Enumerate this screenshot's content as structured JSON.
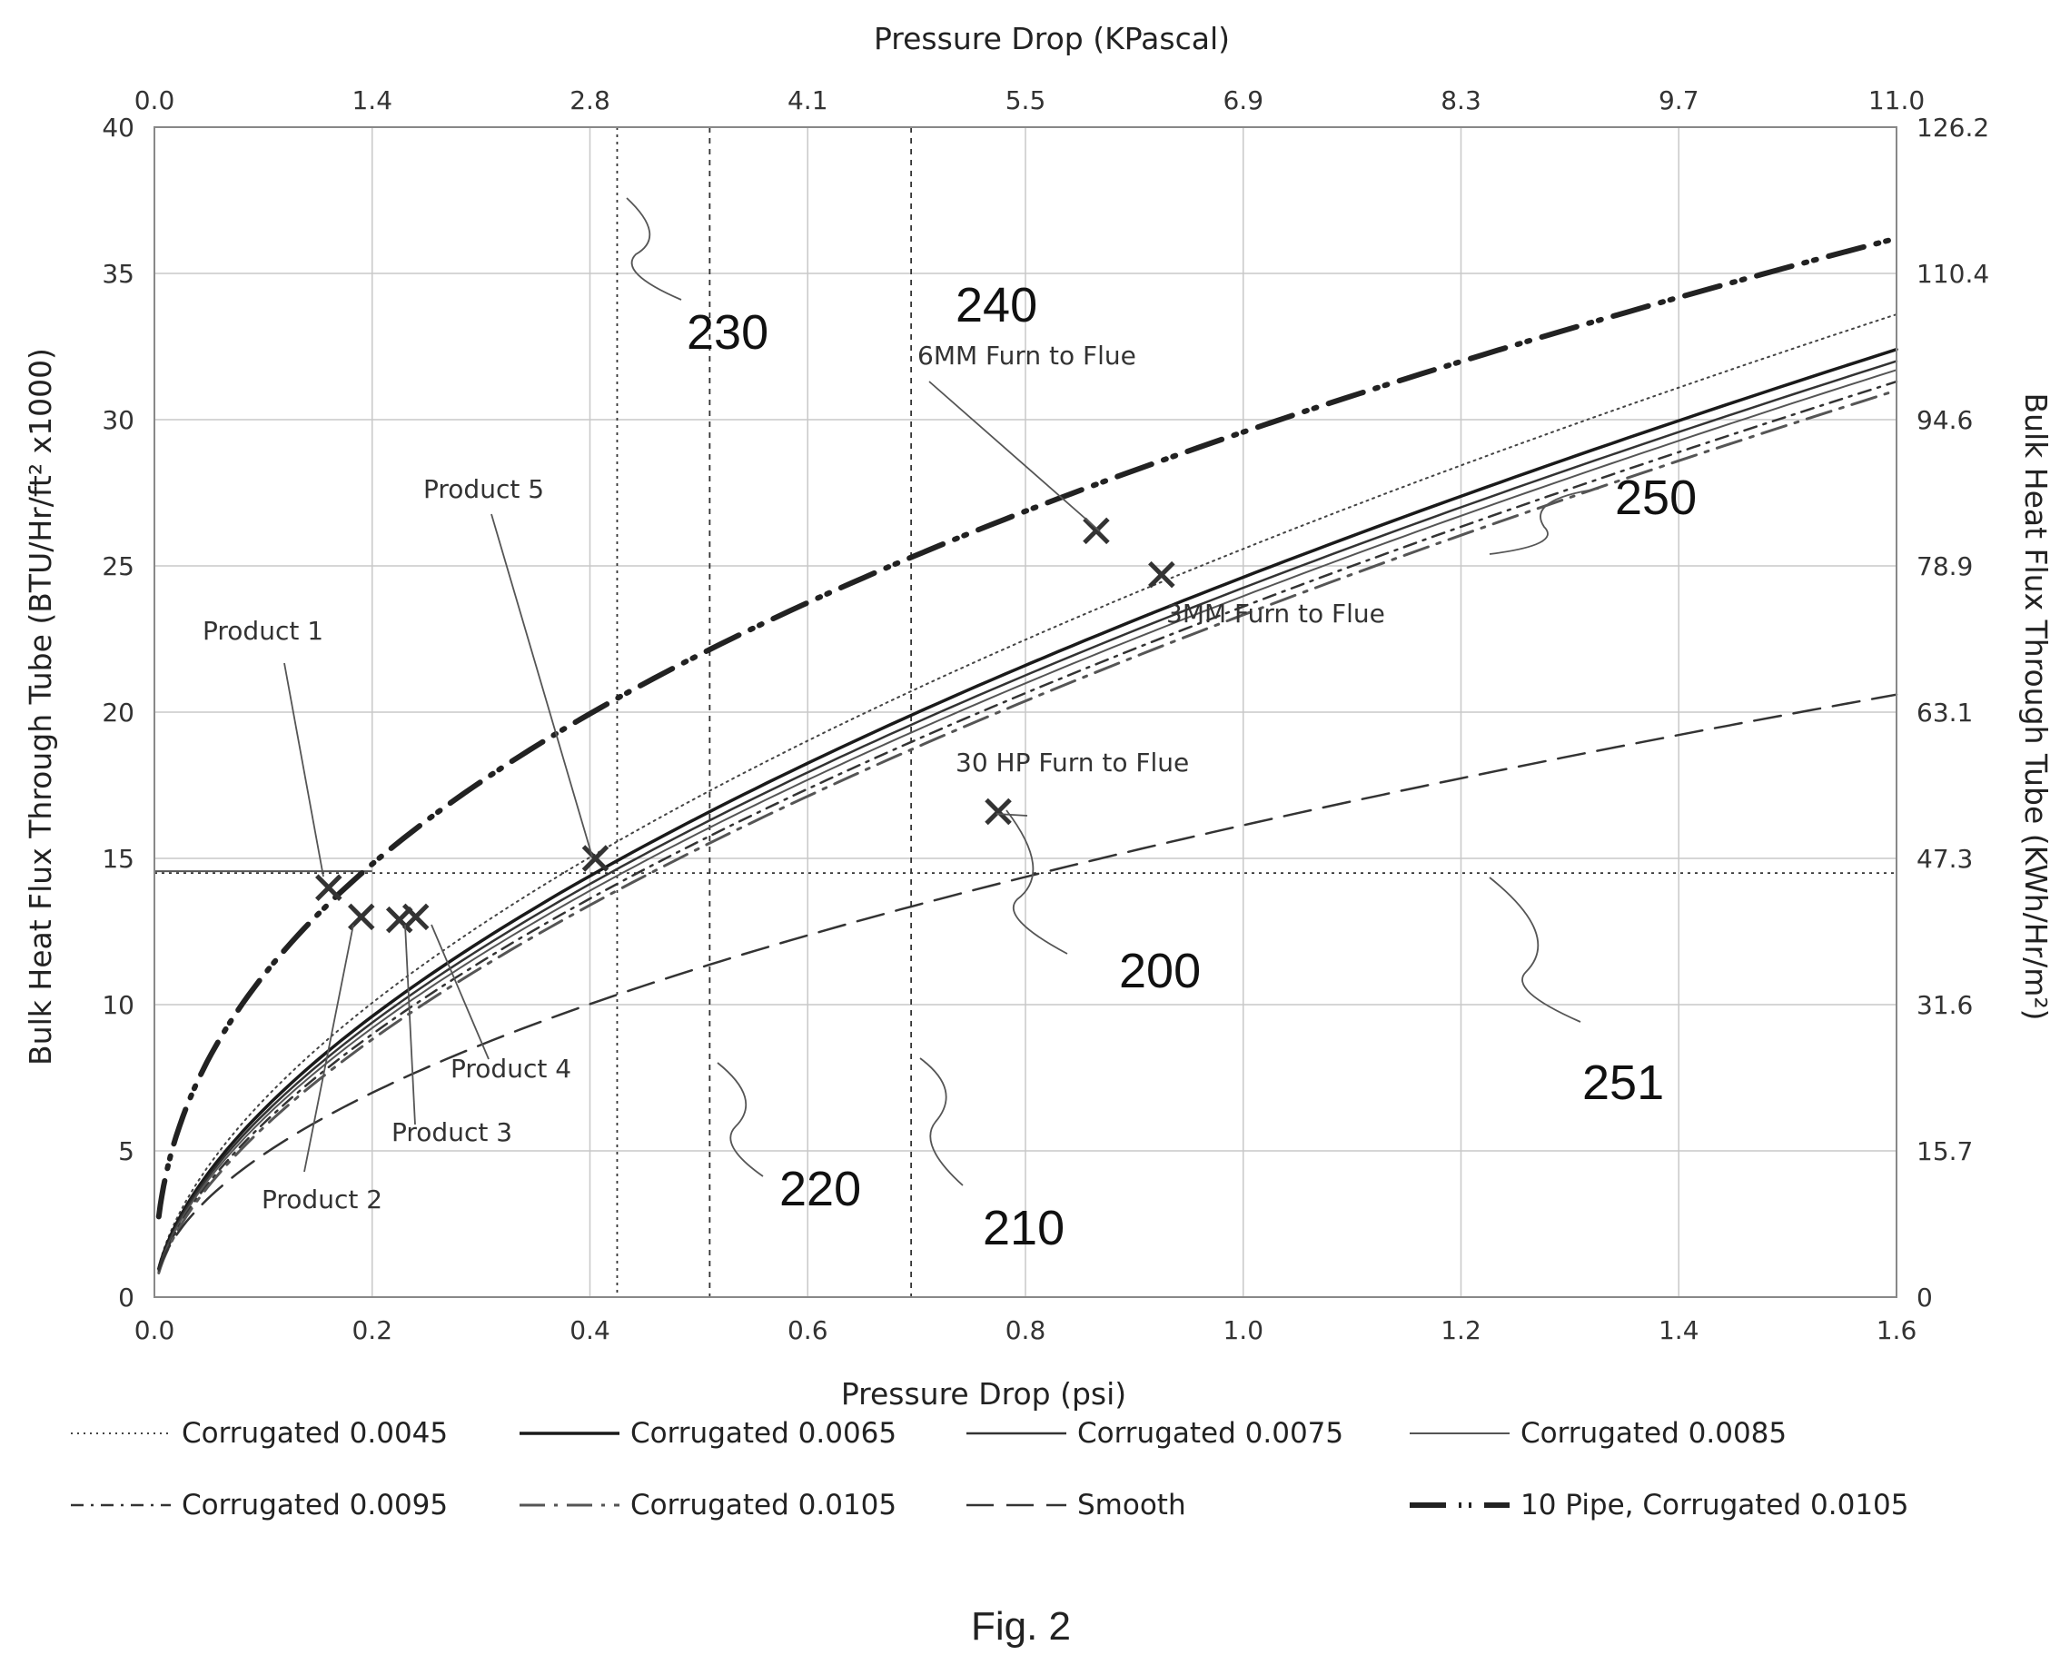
{
  "chart_data": {
    "type": "line",
    "x_bottom_label": "Pressure Drop (psi)",
    "x_top_label": "Pressure Drop (KPascal)",
    "y_left_label": "Bulk Heat Flux Through Tube (BTU/Hr/ft² x1000)",
    "y_right_label": "Bulk Heat Flux Through Tube (KWh/Hr/m²)",
    "xlim": [
      0,
      1.6
    ],
    "ylim": [
      0,
      40
    ],
    "x_ticks": [
      "0.0",
      "0.2",
      "0.4",
      "0.6",
      "0.8",
      "1.0",
      "1.2",
      "1.4",
      "1.6"
    ],
    "y_ticks": [
      "0",
      "5",
      "10",
      "15",
      "20",
      "25",
      "30",
      "35",
      "40"
    ],
    "top_ticks": [
      "0.0",
      "1.4",
      "2.8",
      "4.1",
      "5.5",
      "6.9",
      "8.3",
      "9.7",
      "11.0"
    ],
    "right_ticks": [
      "0",
      "15.7",
      "31.6",
      "47.3",
      "63.1",
      "78.9",
      "94.6",
      "110.4",
      "126.2"
    ],
    "grid": true,
    "legend_position": "bottom",
    "series": [
      {
        "name": "Corrugated 0.0045",
        "style": "dotted",
        "width": 2,
        "color": "#444444",
        "a": 33.6,
        "p": 0.58
      },
      {
        "name": "Corrugated 0.0065",
        "style": "solid",
        "width": 3.5,
        "color": "#1a1a1a",
        "a": 32.4,
        "p": 0.585
      },
      {
        "name": "Corrugated 0.0075",
        "style": "solid",
        "width": 2.5,
        "color": "#333333",
        "a": 32.0,
        "p": 0.59
      },
      {
        "name": "Corrugated 0.0085",
        "style": "solid",
        "width": 2,
        "color": "#555555",
        "a": 31.7,
        "p": 0.595
      },
      {
        "name": "Corrugated 0.0095",
        "style": "dashdot",
        "width": 2.5,
        "color": "#333333",
        "a": 31.3,
        "p": 0.6
      },
      {
        "name": "Corrugated 0.0105",
        "style": "dashdot2",
        "width": 3,
        "color": "#555555",
        "a": 31.0,
        "p": 0.605
      },
      {
        "name": "Smooth",
        "style": "dashed",
        "width": 2.5,
        "color": "#333333",
        "a": 20.6,
        "p": 0.52
      },
      {
        "name": "10 Pipe, Corrugated 0.0105",
        "style": "heavy",
        "width": 6,
        "color": "#222222",
        "a": 36.2,
        "p": 0.43
      }
    ],
    "reference_lines": [
      {
        "id": "230",
        "axis": "x",
        "value": 0.425,
        "dash": "3,5"
      },
      {
        "id": "220",
        "axis": "x",
        "value": 0.51,
        "dash": "6,6"
      },
      {
        "id": "210",
        "axis": "x",
        "value": 0.695,
        "dash": "6,6"
      },
      {
        "id": "251",
        "axis": "y",
        "value": 14.5,
        "dash": "3,5"
      }
    ],
    "points": [
      {
        "label": "Product 1",
        "x": 0.16,
        "y": 14.0
      },
      {
        "label": "Product 2",
        "x": 0.19,
        "y": 13.0
      },
      {
        "label": "Product 3",
        "x": 0.225,
        "y": 12.9
      },
      {
        "label": "Product 4",
        "x": 0.24,
        "y": 13.0
      },
      {
        "label": "Product 5",
        "x": 0.405,
        "y": 15.0
      },
      {
        "label": "30 HP Furn to Flue",
        "x": 0.775,
        "y": 16.6
      },
      {
        "label": "6MM Furn to Flue",
        "x": 0.865,
        "y": 26.2
      },
      {
        "label": "3MM Furn to Flue",
        "x": 0.925,
        "y": 24.7
      }
    ],
    "reference_numbers": [
      "240",
      "230",
      "250",
      "200",
      "251",
      "220",
      "210"
    ]
  },
  "caption": "Fig. 2"
}
